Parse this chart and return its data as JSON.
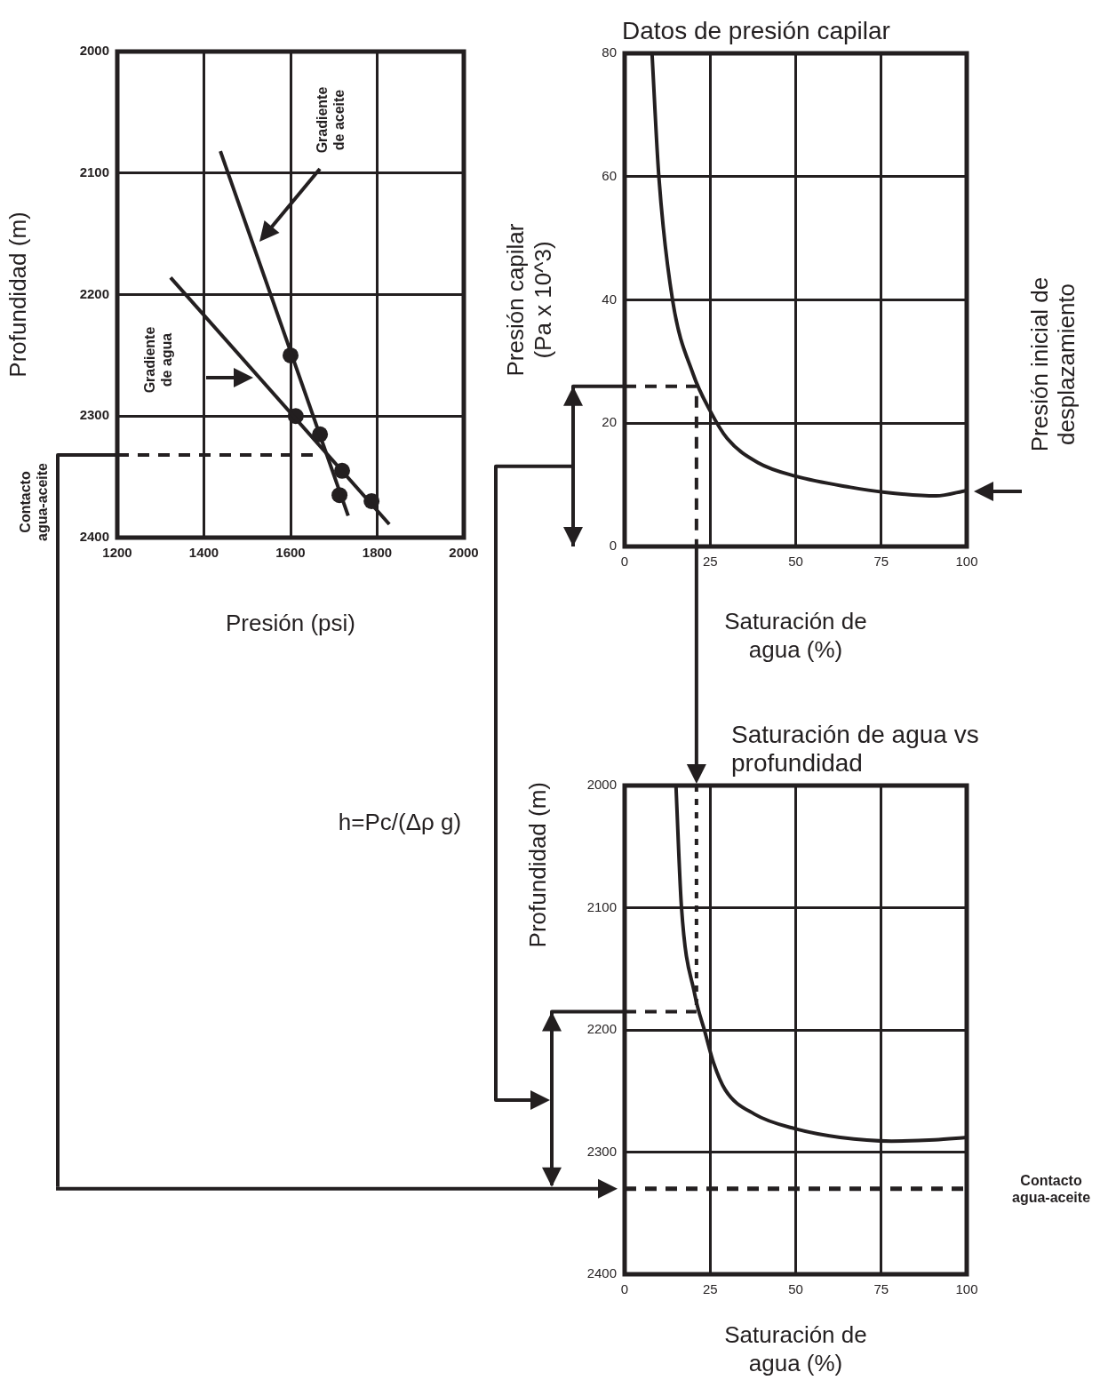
{
  "chart_data": [
    {
      "type": "line",
      "xlabel": "Presión (psi)",
      "ylabel": "Profundidad (m)",
      "xlim": [
        1200,
        2000
      ],
      "xticks": [
        1200,
        1400,
        1600,
        1800,
        2000
      ],
      "ylim": [
        2400,
        2000
      ],
      "yticks": [
        2000,
        2100,
        2200,
        2300,
        2400
      ],
      "grid": true,
      "legend": false,
      "series": [
        {
          "type": "line",
          "color": "#231f20",
          "x": [
            1438,
            1733
          ],
          "values": [
            2082,
            2382
          ],
          "marker": "none"
        },
        {
          "type": "line",
          "color": "#231f20",
          "x": [
            1323,
            1828
          ],
          "values": [
            2186,
            2389
          ],
          "marker": "none"
        },
        {
          "type": "scatter",
          "color": "#231f20",
          "x": [
            1600,
            1668,
            1713
          ],
          "values": [
            2250,
            2315,
            2365
          ],
          "marker": "circle"
        },
        {
          "type": "scatter",
          "color": "#231f20",
          "x": [
            1612,
            1719,
            1787
          ],
          "values": [
            2300,
            2345,
            2370
          ],
          "marker": "circle"
        },
        {
          "type": "line",
          "color": "#231f20",
          "x": [
            1200,
            1665
          ],
          "values": [
            2332,
            2332
          ],
          "line_style": "dashed",
          "marker": "none"
        }
      ],
      "annotations": [
        "Gradiente de aceite",
        "Gradiente de agua",
        "Contacto agua-aceite"
      ]
    },
    {
      "type": "line",
      "title": "Datos de presión capilar",
      "xlabel": "Saturación de agua (%)",
      "ylabel": "Presión capilar (Pa x 10^3)",
      "xlim": [
        0,
        100
      ],
      "xticks": [
        0,
        25,
        50,
        75,
        100
      ],
      "ylim": [
        0,
        80
      ],
      "yticks": [
        0,
        20,
        40,
        60,
        80
      ],
      "grid": true,
      "legend": false,
      "series": [
        {
          "type": "line",
          "color": "#231f20",
          "x": [
            8,
            10,
            14,
            20,
            25,
            30,
            39,
            50,
            66,
            76,
            91,
            100
          ],
          "values": [
            80,
            60,
            40,
            28,
            22,
            17.5,
            13.6,
            11.4,
            9.6,
            8.8,
            8.2,
            9.1
          ],
          "marker": "none"
        },
        {
          "type": "line",
          "color": "#231f20",
          "x": [
            0,
            21,
            21
          ],
          "values": [
            26,
            26,
            0
          ],
          "line_style": "dashed",
          "marker": "none"
        }
      ],
      "annotations": [
        "Presión inicial de desplazamiento"
      ]
    },
    {
      "type": "line",
      "title": "Saturación de agua vs profundidad",
      "xlabel": "Saturación de agua (%)",
      "ylabel": "Profundidad (m)",
      "xlim": [
        0,
        100
      ],
      "xticks": [
        0,
        25,
        50,
        75,
        100
      ],
      "ylim": [
        2400,
        2000
      ],
      "yticks": [
        2000,
        2100,
        2200,
        2300,
        2400
      ],
      "grid": true,
      "legend": false,
      "series": [
        {
          "type": "line",
          "color": "#231f20",
          "x": [
            15,
            16.6,
            20.5,
            23.5,
            26,
            29.4,
            38,
            50,
            63,
            78,
            90.6,
            100
          ],
          "values": [
            2000,
            2099,
            2171,
            2202,
            2227,
            2249,
            2269,
            2281,
            2288,
            2291,
            2290,
            2288
          ],
          "marker": "none"
        },
        {
          "type": "line",
          "color": "#231f20",
          "x": [
            0,
            21
          ],
          "values": [
            2185,
            2185
          ],
          "line_style": "dashed",
          "marker": "none"
        },
        {
          "type": "line",
          "color": "#231f20",
          "x": [
            21,
            21
          ],
          "values": [
            2000,
            2185
          ],
          "line_style": "dotted",
          "marker": "none"
        }
      ],
      "ref_lines": [
        {
          "axis": "y",
          "value": 2330,
          "label": "Contacto agua-aceite",
          "line_style": "dashed"
        }
      ],
      "annotations": [
        "h=Pc/(Δρ g)"
      ]
    }
  ]
}
